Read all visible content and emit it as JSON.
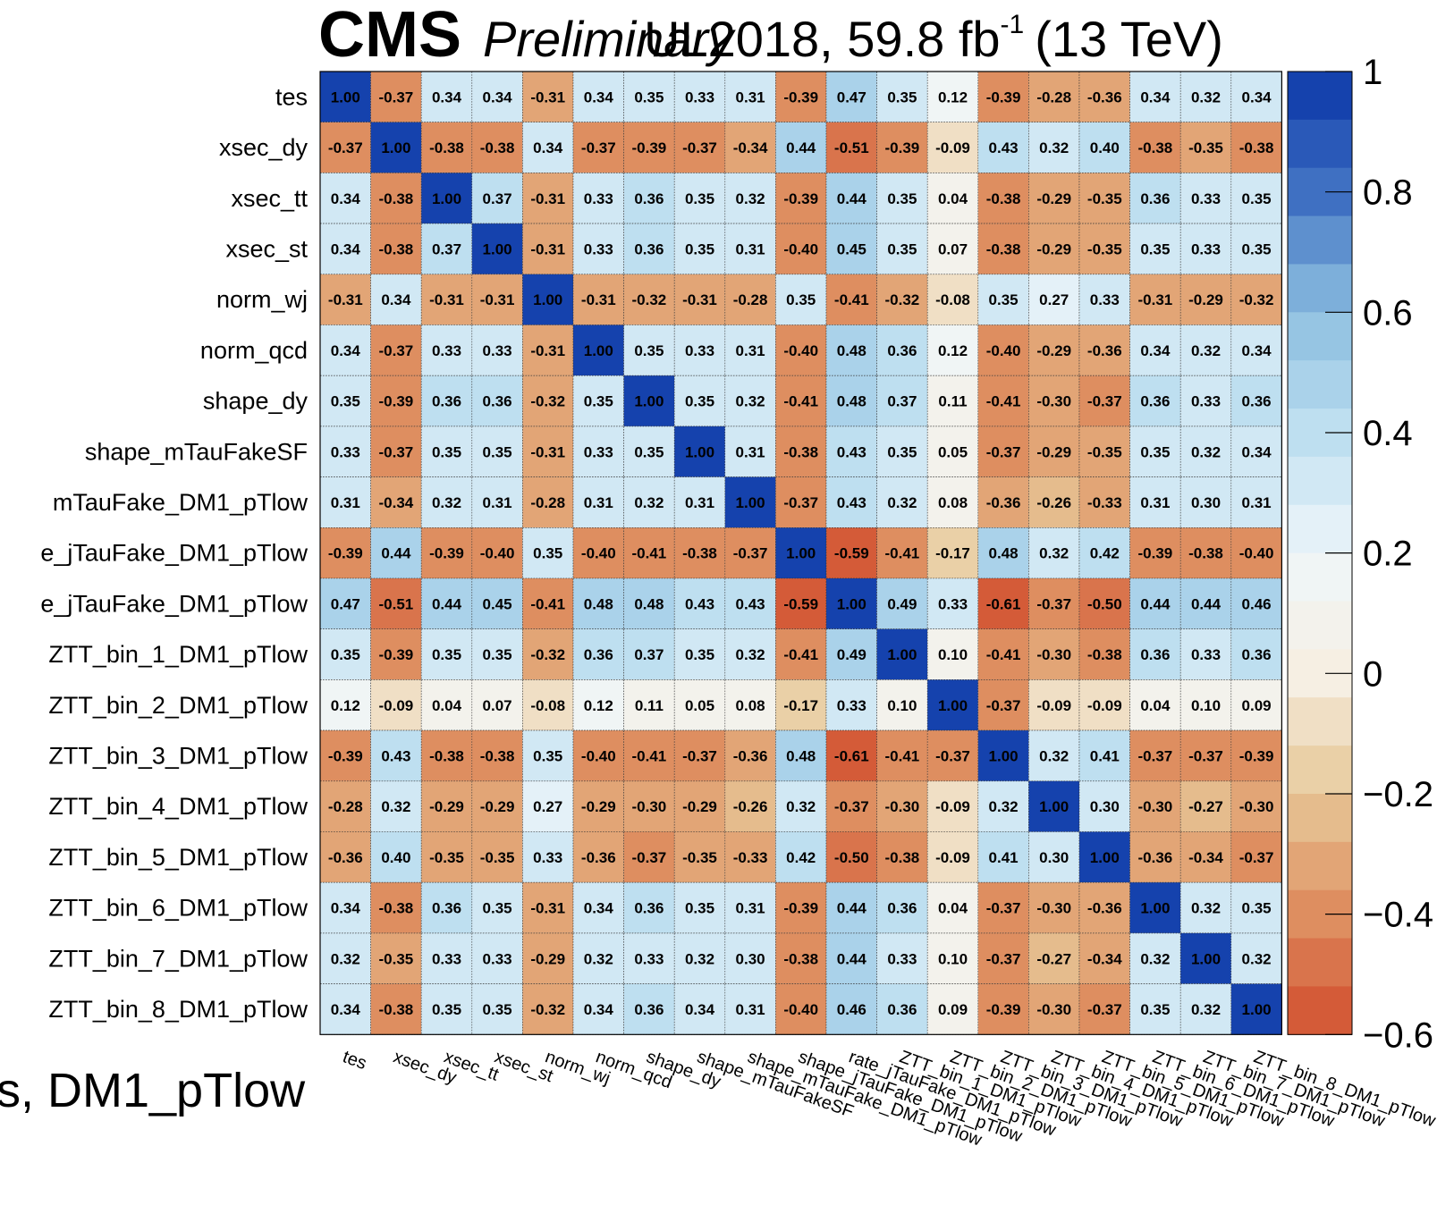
{
  "header": {
    "experiment": "CMS",
    "status": "Preliminary",
    "lumi_main": "UL2018, 59.8 fb",
    "lumi_sup": "-1",
    "lumi_energy": "(13 TeV)"
  },
  "bottom_label": "s, DM1_pTlow",
  "chart_data": {
    "type": "heatmap",
    "title": "",
    "xlabel": "",
    "ylabel": "",
    "labels": [
      "tes",
      "xsec_dy",
      "xsec_tt",
      "xsec_st",
      "norm_wj",
      "norm_qcd",
      "shape_dy",
      "shape_mTauFakeSF",
      "shape_mTauFake_DM1_pTlow",
      "shape_jTauFake_DM1_pTlow",
      "rate_jTauFake_DM1_pTlow",
      "ZTT_bin_1_DM1_pTlow",
      "ZTT_bin_2_DM1_pTlow",
      "ZTT_bin_3_DM1_pTlow",
      "ZTT_bin_4_DM1_pTlow",
      "ZTT_bin_5_DM1_pTlow",
      "ZTT_bin_6_DM1_pTlow",
      "ZTT_bin_7_DM1_pTlow",
      "ZTT_bin_8_DM1_pTlow"
    ],
    "y_labels_shown": [
      "tes",
      "xsec_dy",
      "xsec_tt",
      "xsec_st",
      "norm_wj",
      "norm_qcd",
      "shape_dy",
      "shape_mTauFakeSF",
      "mTauFake_DM1_pTlow",
      "e_jTauFake_DM1_pTlow",
      "e_jTauFake_DM1_pTlow",
      "ZTT_bin_1_DM1_pTlow",
      "ZTT_bin_2_DM1_pTlow",
      "ZTT_bin_3_DM1_pTlow",
      "ZTT_bin_4_DM1_pTlow",
      "ZTT_bin_5_DM1_pTlow",
      "ZTT_bin_6_DM1_pTlow",
      "ZTT_bin_7_DM1_pTlow",
      "ZTT_bin_8_DM1_pTlow"
    ],
    "x_labels_shown": [
      "tes",
      "xsec_dy",
      "xsec_tt",
      "xsec_st",
      "norm_wj",
      "norm_qcd",
      "shape_dy",
      "shape_mTauFakeSF",
      "shape_mTauFake_DM1_pTlow",
      "shape_jTauFake_DM1_pTlow",
      "rate_jTauFake_DM1_pTlow",
      "ZTT_bin_1_DM1_pTlow",
      "ZTT_bin_2_DM1_pTlow",
      "ZTT_bin_3_DM1_pTlow",
      "ZTT_bin_4_DM1_pTlow",
      "ZTT_bin_5_DM1_pTlow",
      "ZTT_bin_6_DM1_pTlow",
      "ZTT_bin_7_DM1_pTlow",
      "ZTT_bin_8_DM1_pTlow"
    ],
    "values": [
      [
        1.0,
        -0.37,
        0.34,
        0.34,
        -0.31,
        0.34,
        0.35,
        0.33,
        0.31,
        -0.39,
        0.47,
        0.35,
        0.12,
        -0.39,
        -0.28,
        -0.36,
        0.34,
        0.32,
        0.34
      ],
      [
        -0.37,
        1.0,
        -0.38,
        -0.38,
        0.34,
        -0.37,
        -0.39,
        -0.37,
        -0.34,
        0.44,
        -0.51,
        -0.39,
        -0.09,
        0.43,
        0.32,
        0.4,
        -0.38,
        -0.35,
        -0.38
      ],
      [
        0.34,
        -0.38,
        1.0,
        0.37,
        -0.31,
        0.33,
        0.36,
        0.35,
        0.32,
        -0.39,
        0.44,
        0.35,
        0.04,
        -0.38,
        -0.29,
        -0.35,
        0.36,
        0.33,
        0.35
      ],
      [
        0.34,
        -0.38,
        0.37,
        1.0,
        -0.31,
        0.33,
        0.36,
        0.35,
        0.31,
        -0.4,
        0.45,
        0.35,
        0.07,
        -0.38,
        -0.29,
        -0.35,
        0.35,
        0.33,
        0.35
      ],
      [
        -0.31,
        0.34,
        -0.31,
        -0.31,
        1.0,
        -0.31,
        -0.32,
        -0.31,
        -0.28,
        0.35,
        -0.41,
        -0.32,
        -0.08,
        0.35,
        0.27,
        0.33,
        -0.31,
        -0.29,
        -0.32
      ],
      [
        0.34,
        -0.37,
        0.33,
        0.33,
        -0.31,
        1.0,
        0.35,
        0.33,
        0.31,
        -0.4,
        0.48,
        0.36,
        0.12,
        -0.4,
        -0.29,
        -0.36,
        0.34,
        0.32,
        0.34
      ],
      [
        0.35,
        -0.39,
        0.36,
        0.36,
        -0.32,
        0.35,
        1.0,
        0.35,
        0.32,
        -0.41,
        0.48,
        0.37,
        0.11,
        -0.41,
        -0.3,
        -0.37,
        0.36,
        0.33,
        0.36
      ],
      [
        0.33,
        -0.37,
        0.35,
        0.35,
        -0.31,
        0.33,
        0.35,
        1.0,
        0.31,
        -0.38,
        0.43,
        0.35,
        0.05,
        -0.37,
        -0.29,
        -0.35,
        0.35,
        0.32,
        0.34
      ],
      [
        0.31,
        -0.34,
        0.32,
        0.31,
        -0.28,
        0.31,
        0.32,
        0.31,
        1.0,
        -0.37,
        0.43,
        0.32,
        0.08,
        -0.36,
        -0.26,
        -0.33,
        0.31,
        0.3,
        0.31
      ],
      [
        -0.39,
        0.44,
        -0.39,
        -0.4,
        0.35,
        -0.4,
        -0.41,
        -0.38,
        -0.37,
        1.0,
        -0.59,
        -0.41,
        -0.17,
        0.48,
        0.32,
        0.42,
        -0.39,
        -0.38,
        -0.4
      ],
      [
        0.47,
        -0.51,
        0.44,
        0.45,
        -0.41,
        0.48,
        0.48,
        0.43,
        0.43,
        -0.59,
        1.0,
        0.49,
        0.33,
        -0.61,
        -0.37,
        -0.5,
        0.44,
        0.44,
        0.46
      ],
      [
        0.35,
        -0.39,
        0.35,
        0.35,
        -0.32,
        0.36,
        0.37,
        0.35,
        0.32,
        -0.41,
        0.49,
        1.0,
        0.1,
        -0.41,
        -0.3,
        -0.38,
        0.36,
        0.33,
        0.36
      ],
      [
        0.12,
        -0.09,
        0.04,
        0.07,
        -0.08,
        0.12,
        0.11,
        0.05,
        0.08,
        -0.17,
        0.33,
        0.1,
        1.0,
        -0.37,
        -0.09,
        -0.09,
        0.04,
        0.1,
        0.09
      ],
      [
        -0.39,
        0.43,
        -0.38,
        -0.38,
        0.35,
        -0.4,
        -0.41,
        -0.37,
        -0.36,
        0.48,
        -0.61,
        -0.41,
        -0.37,
        1.0,
        0.32,
        0.41,
        -0.37,
        -0.37,
        -0.39
      ],
      [
        -0.28,
        0.32,
        -0.29,
        -0.29,
        0.27,
        -0.29,
        -0.3,
        -0.29,
        -0.26,
        0.32,
        -0.37,
        -0.3,
        -0.09,
        0.32,
        1.0,
        0.3,
        -0.3,
        -0.27,
        -0.3
      ],
      [
        -0.36,
        0.4,
        -0.35,
        -0.35,
        0.33,
        -0.36,
        -0.37,
        -0.35,
        -0.33,
        0.42,
        -0.5,
        -0.38,
        -0.09,
        0.41,
        0.3,
        1.0,
        -0.36,
        -0.34,
        -0.37
      ],
      [
        0.34,
        -0.38,
        0.36,
        0.35,
        -0.31,
        0.34,
        0.36,
        0.35,
        0.31,
        -0.39,
        0.44,
        0.36,
        0.04,
        -0.37,
        -0.3,
        -0.36,
        1.0,
        0.32,
        0.35
      ],
      [
        0.32,
        -0.35,
        0.33,
        0.33,
        -0.29,
        0.32,
        0.33,
        0.32,
        0.3,
        -0.38,
        0.44,
        0.33,
        0.1,
        -0.37,
        -0.27,
        -0.34,
        0.32,
        1.0,
        0.32
      ],
      [
        0.34,
        -0.38,
        0.35,
        0.35,
        -0.32,
        0.34,
        0.36,
        0.34,
        0.31,
        -0.4,
        0.46,
        0.36,
        0.09,
        -0.39,
        -0.3,
        -0.37,
        0.35,
        0.32,
        1.0
      ]
    ],
    "zlim": [
      -0.6,
      1.0
    ],
    "colorbar_ticks": [
      {
        "value": 1.0,
        "label": "1"
      },
      {
        "value": 0.8,
        "label": "0.8"
      },
      {
        "value": 0.6,
        "label": "0.6"
      },
      {
        "value": 0.4,
        "label": "0.4"
      },
      {
        "value": 0.2,
        "label": "0.2"
      },
      {
        "value": 0.0,
        "label": "0"
      },
      {
        "value": -0.2,
        "label": "−0.2"
      },
      {
        "value": -0.4,
        "label": "−0.4"
      },
      {
        "value": -0.6,
        "label": "−0.6"
      }
    ],
    "colorbar_levels": 20,
    "palette": [
      {
        "v": -0.6,
        "c": "#d24e2e"
      },
      {
        "v": -0.4,
        "c": "#de8e60"
      },
      {
        "v": -0.2,
        "c": "#e7c898"
      },
      {
        "v": 0.0,
        "c": "#f6efe3"
      },
      {
        "v": 0.2,
        "c": "#eef6fa"
      },
      {
        "v": 0.4,
        "c": "#bedff0"
      },
      {
        "v": 0.6,
        "c": "#8cbfe0"
      },
      {
        "v": 0.8,
        "c": "#3f70c2"
      },
      {
        "v": 1.0,
        "c": "#0a37a8"
      }
    ],
    "grid": true,
    "legend": "colorbar-right"
  }
}
